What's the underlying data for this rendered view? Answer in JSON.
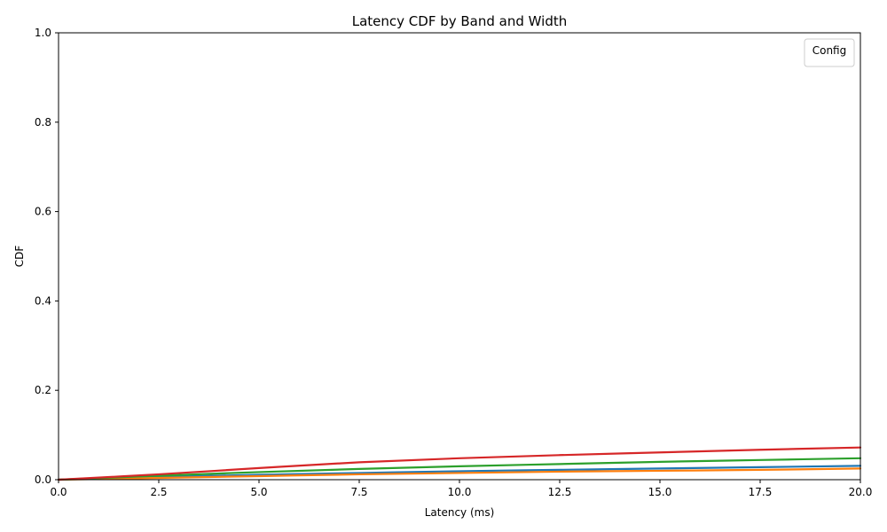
{
  "chart_data": {
    "type": "line",
    "title": "Latency CDF by Band and Width",
    "xlabel": "Latency (ms)",
    "ylabel": "CDF",
    "xlim": [
      0,
      20
    ],
    "ylim": [
      0,
      1
    ],
    "xticks": [
      "0.0",
      "2.5",
      "5.0",
      "7.5",
      "10.0",
      "12.5",
      "15.0",
      "17.5",
      "20.0"
    ],
    "yticks": [
      "0.0",
      "0.2",
      "0.4",
      "0.6",
      "0.8",
      "1.0"
    ],
    "grid": false,
    "legend": {
      "title": "Config",
      "placement": "top-right",
      "entries": []
    },
    "series": [
      {
        "color": "#1f77b4",
        "x": [
          0,
          2.5,
          5,
          7.5,
          10,
          12.5,
          15,
          17.5,
          20
        ],
        "y": [
          0,
          0.006,
          0.011,
          0.015,
          0.019,
          0.022,
          0.025,
          0.028,
          0.031
        ]
      },
      {
        "color": "#ff7f0e",
        "x": [
          0,
          2.5,
          5,
          7.5,
          10,
          12.5,
          15,
          17.5,
          20
        ],
        "y": [
          0,
          0.004,
          0.008,
          0.012,
          0.015,
          0.018,
          0.02,
          0.022,
          0.025
        ]
      },
      {
        "color": "#2ca02c",
        "x": [
          0,
          2.5,
          5,
          7.5,
          10,
          12.5,
          15,
          17.5,
          20
        ],
        "y": [
          0,
          0.009,
          0.017,
          0.024,
          0.03,
          0.035,
          0.04,
          0.044,
          0.048
        ]
      },
      {
        "color": "#d62728",
        "x": [
          0,
          2.5,
          5,
          7.5,
          10,
          12.5,
          15,
          17.5,
          20
        ],
        "y": [
          0,
          0.012,
          0.026,
          0.039,
          0.048,
          0.055,
          0.061,
          0.067,
          0.072
        ]
      }
    ]
  }
}
